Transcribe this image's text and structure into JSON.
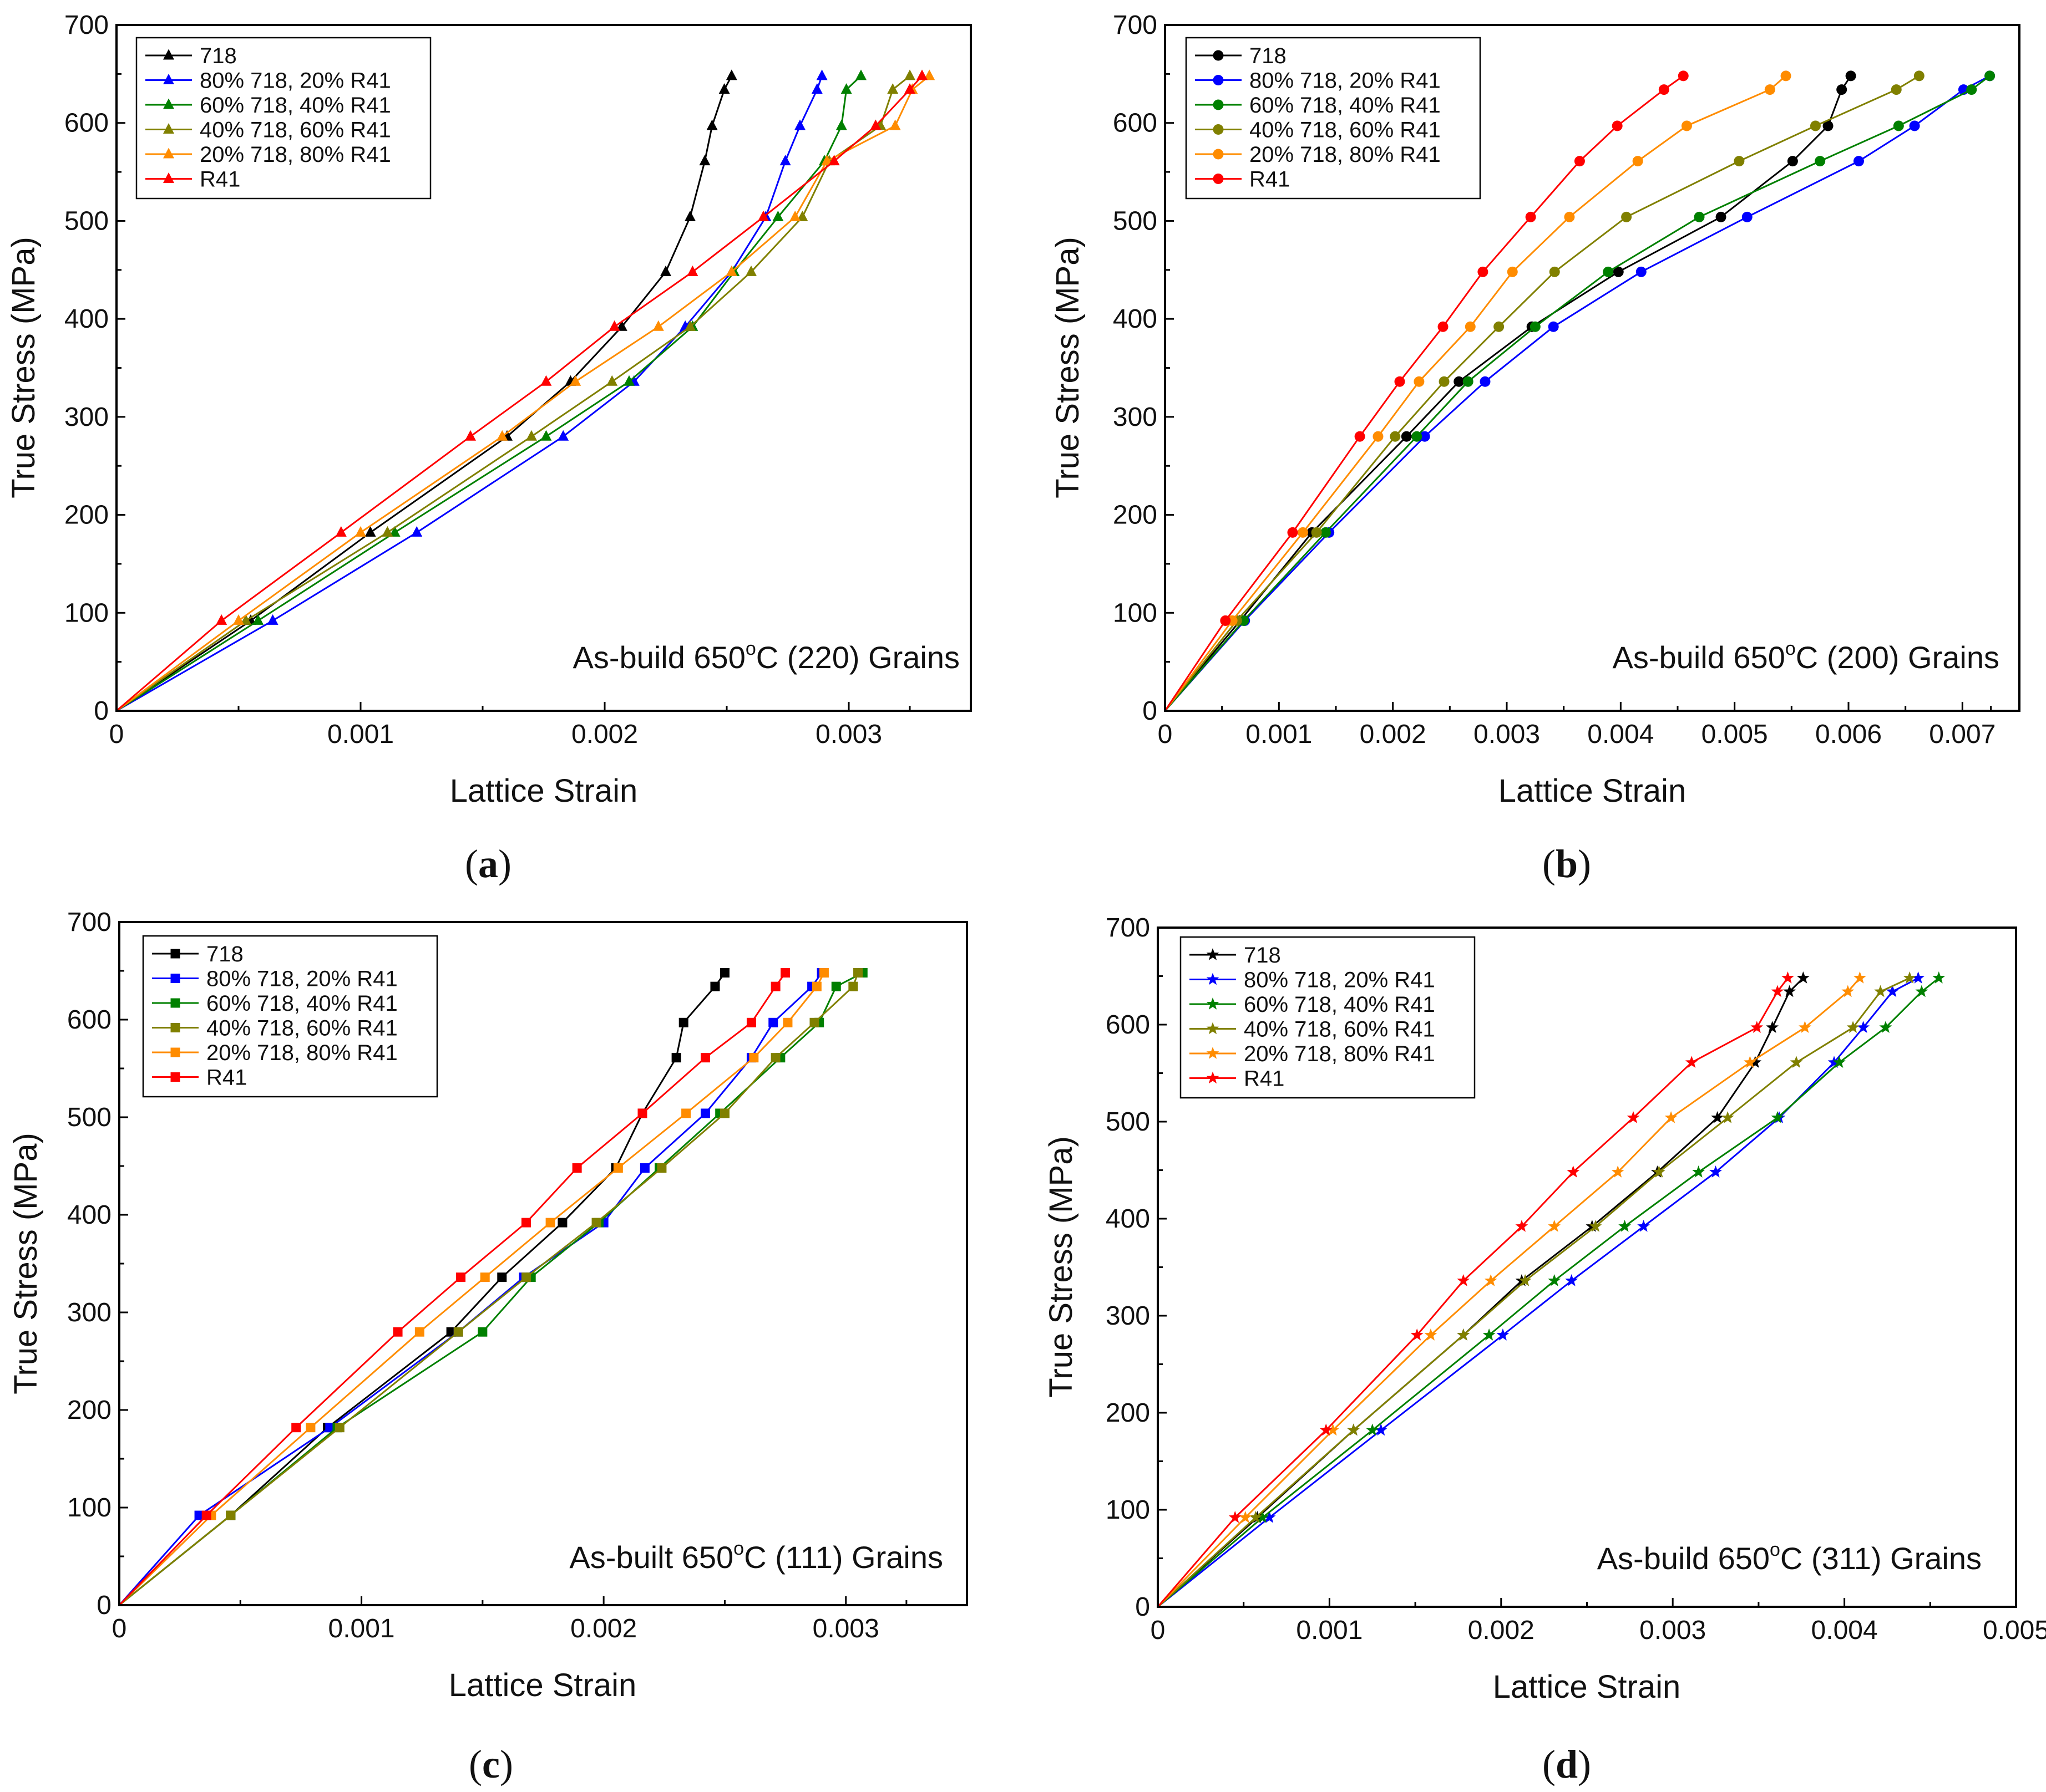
{
  "panels": [
    {
      "id": "a",
      "caption_open": "(",
      "caption_letter": "a",
      "caption_close": ")",
      "annotation_pre": "As-build 650",
      "annotation_sup": "o",
      "annotation_post": "C (220) Grains",
      "xlabel": "Lattice Strain",
      "ylabel": "True Stress (MPa)",
      "xlim": [
        0,
        0.0035
      ],
      "ylim": [
        0,
        700
      ],
      "xticks": [
        0,
        0.001,
        0.002,
        0.003
      ],
      "xtick_labels": [
        "0",
        "0.001",
        "0.002",
        "0.003"
      ],
      "yticks": [
        0,
        100,
        200,
        300,
        400,
        500,
        600,
        700
      ],
      "ytick_labels": [
        "0",
        "100",
        "200",
        "300",
        "400",
        "500",
        "600",
        "700"
      ],
      "marker": "triangle",
      "stresses": [
        0,
        92,
        182,
        280,
        336,
        392,
        448,
        504,
        561,
        597,
        634,
        648
      ],
      "series": [
        {
          "name": "718",
          "color": "#000000",
          "strains": [
            0,
            0.00055,
            0.00104,
            0.0016,
            0.00186,
            0.00207,
            0.00225,
            0.00235,
            0.00241,
            0.00244,
            0.00249,
            0.00252
          ]
        },
        {
          "name": "80% 718, 20% R41",
          "color": "#0000ff",
          "strains": [
            0,
            0.00064,
            0.00123,
            0.00183,
            0.00212,
            0.00233,
            0.00252,
            0.00266,
            0.00274,
            0.0028,
            0.00287,
            0.00289
          ]
        },
        {
          "name": "60% 718, 40% R41",
          "color": "#008000",
          "strains": [
            0,
            0.00058,
            0.00114,
            0.00176,
            0.0021,
            0.00236,
            0.00253,
            0.00271,
            0.0029,
            0.00297,
            0.00299,
            0.00305
          ]
        },
        {
          "name": "40% 718, 60% R41",
          "color": "#808000",
          "strains": [
            0,
            0.00053,
            0.00111,
            0.0017,
            0.00203,
            0.00235,
            0.0026,
            0.00281,
            0.00292,
            0.00313,
            0.00318,
            0.00325
          ]
        },
        {
          "name": "20% 718, 80% R41",
          "color": "#ff8c00",
          "strains": [
            0,
            0.0005,
            0.001,
            0.00158,
            0.00188,
            0.00222,
            0.00252,
            0.00278,
            0.00291,
            0.00319,
            0.00326,
            0.00333
          ]
        },
        {
          "name": "R41",
          "color": "#ff0000",
          "strains": [
            0,
            0.00043,
            0.00092,
            0.00145,
            0.00176,
            0.00204,
            0.00236,
            0.00265,
            0.00294,
            0.00311,
            0.00325,
            0.0033
          ]
        }
      ]
    },
    {
      "id": "b",
      "caption_open": "(",
      "caption_letter": "b",
      "caption_close": ")",
      "annotation_pre": "As-build 650",
      "annotation_sup": "o",
      "annotation_post": "C (200) Grains",
      "xlabel": "Lattice Strain",
      "ylabel": "True Stress (MPa)",
      "xlim": [
        0,
        0.0075
      ],
      "ylim": [
        0,
        700
      ],
      "xticks": [
        0,
        0.001,
        0.002,
        0.003,
        0.004,
        0.005,
        0.006,
        0.007
      ],
      "xtick_labels": [
        "0",
        "0.001",
        "0.002",
        "0.003",
        "0.004",
        "0.005",
        "0.006",
        "0.007"
      ],
      "yticks": [
        0,
        100,
        200,
        300,
        400,
        500,
        600,
        700
      ],
      "ytick_labels": [
        "0",
        "100",
        "200",
        "300",
        "400",
        "500",
        "600",
        "700"
      ],
      "marker": "circle",
      "stresses": [
        0,
        92,
        182,
        280,
        336,
        392,
        448,
        504,
        561,
        597,
        634,
        648
      ],
      "series": [
        {
          "name": "718",
          "color": "#000000",
          "strains": [
            0,
            0.00066,
            0.00129,
            0.00212,
            0.00258,
            0.00322,
            0.00398,
            0.00488,
            0.00551,
            0.00582,
            0.00594,
            0.00602
          ]
        },
        {
          "name": "80% 718, 20% R41",
          "color": "#0000ff",
          "strains": [
            0,
            0.0007,
            0.00144,
            0.00228,
            0.00281,
            0.00341,
            0.00418,
            0.00511,
            0.00609,
            0.00658,
            0.00701,
            0.00724
          ]
        },
        {
          "name": "60% 718, 40% R41",
          "color": "#008000",
          "strains": [
            0,
            0.00069,
            0.00141,
            0.00221,
            0.00266,
            0.00325,
            0.00389,
            0.00469,
            0.00575,
            0.00644,
            0.00708,
            0.00724
          ]
        },
        {
          "name": "40% 718, 60% R41",
          "color": "#808000",
          "strains": [
            0,
            0.00063,
            0.00133,
            0.00202,
            0.00245,
            0.00293,
            0.00342,
            0.00405,
            0.00504,
            0.00571,
            0.00642,
            0.00662
          ]
        },
        {
          "name": "20% 718, 80% R41",
          "color": "#ff8c00",
          "strains": [
            0,
            0.00059,
            0.00121,
            0.00187,
            0.00223,
            0.00268,
            0.00305,
            0.00355,
            0.00415,
            0.00458,
            0.00531,
            0.00545
          ]
        },
        {
          "name": "R41",
          "color": "#ff0000",
          "strains": [
            0,
            0.00053,
            0.00112,
            0.00171,
            0.00206,
            0.00244,
            0.00279,
            0.00321,
            0.00364,
            0.00397,
            0.00438,
            0.00455
          ]
        }
      ]
    },
    {
      "id": "c",
      "caption_open": "(",
      "caption_letter": "c",
      "caption_close": ")",
      "annotation_pre": "As-built 650",
      "annotation_sup": "o",
      "annotation_post": "C (111) Grains",
      "xlabel": "Lattice Strain",
      "ylabel": "True Stress (MPa)",
      "xlim": [
        0,
        0.0035
      ],
      "ylim": [
        0,
        700
      ],
      "xticks": [
        0,
        0.001,
        0.002,
        0.003
      ],
      "xtick_labels": [
        "0",
        "0.001",
        "0.002",
        "0.003"
      ],
      "yticks": [
        0,
        100,
        200,
        300,
        400,
        500,
        600,
        700
      ],
      "ytick_labels": [
        "0",
        "100",
        "200",
        "300",
        "400",
        "500",
        "600",
        "700"
      ],
      "marker": "square",
      "stresses": [
        0,
        92,
        182,
        280,
        336,
        392,
        448,
        504,
        561,
        597,
        634,
        648
      ],
      "series": [
        {
          "name": "718",
          "color": "#000000",
          "strains": [
            0,
            0.00046,
            0.00086,
            0.00137,
            0.00158,
            0.00183,
            0.00205,
            0.00216,
            0.0023,
            0.00233,
            0.00246,
            0.0025
          ]
        },
        {
          "name": "80% 718, 20% R41",
          "color": "#0000ff",
          "strains": [
            0,
            0.00033,
            0.00087,
            0.0014,
            0.00167,
            0.002,
            0.00217,
            0.00242,
            0.00261,
            0.0027,
            0.00286,
            0.0029
          ]
        },
        {
          "name": "60% 718, 40% R41",
          "color": "#008000",
          "strains": [
            0,
            0.00046,
            0.0009,
            0.0015,
            0.0017,
            0.00198,
            0.00223,
            0.00248,
            0.00273,
            0.00289,
            0.00296,
            0.00307
          ]
        },
        {
          "name": "40% 718, 60% R41",
          "color": "#808000",
          "strains": [
            0,
            0.00046,
            0.00091,
            0.0014,
            0.00168,
            0.00197,
            0.00224,
            0.0025,
            0.00271,
            0.00287,
            0.00303,
            0.00305
          ]
        },
        {
          "name": "20% 718, 80% R41",
          "color": "#ff8c00",
          "strains": [
            0,
            0.00038,
            0.00079,
            0.00124,
            0.00151,
            0.00178,
            0.00206,
            0.00234,
            0.00262,
            0.00276,
            0.00288,
            0.00291
          ]
        },
        {
          "name": "R41",
          "color": "#ff0000",
          "strains": [
            0,
            0.00036,
            0.00073,
            0.00115,
            0.00141,
            0.00168,
            0.00189,
            0.00216,
            0.00242,
            0.00261,
            0.00271,
            0.00275
          ]
        }
      ]
    },
    {
      "id": "d",
      "caption_open": "(",
      "caption_letter": "d",
      "caption_close": ")",
      "annotation_pre": "As-build 650",
      "annotation_sup": "o",
      "annotation_post": "C (311) Grains",
      "xlabel": "Lattice Strain",
      "ylabel": "True Stress (MPa)",
      "xlim": [
        0,
        0.005
      ],
      "ylim": [
        0,
        700
      ],
      "xticks": [
        0,
        0.001,
        0.002,
        0.003,
        0.004,
        0.005
      ],
      "xtick_labels": [
        "0",
        "0.001",
        "0.002",
        "0.003",
        "0.004",
        "0.005"
      ],
      "yticks": [
        0,
        100,
        200,
        300,
        400,
        500,
        600,
        700
      ],
      "ytick_labels": [
        "0",
        "100",
        "200",
        "300",
        "400",
        "500",
        "600",
        "700"
      ],
      "marker": "star",
      "stresses": [
        0,
        92,
        182,
        280,
        336,
        392,
        448,
        504,
        561,
        597,
        634,
        648
      ],
      "series": [
        {
          "name": "718",
          "color": "#000000",
          "strains": [
            0,
            0.00058,
            0.00114,
            0.00178,
            0.00212,
            0.00253,
            0.00291,
            0.00326,
            0.00348,
            0.00358,
            0.00368,
            0.00376
          ]
        },
        {
          "name": "80% 718, 20% R41",
          "color": "#0000ff",
          "strains": [
            0,
            0.00065,
            0.0013,
            0.00201,
            0.00241,
            0.00283,
            0.00325,
            0.00362,
            0.00394,
            0.00411,
            0.00428,
            0.00443
          ]
        },
        {
          "name": "60% 718, 40% R41",
          "color": "#008000",
          "strains": [
            0,
            0.00061,
            0.00125,
            0.00193,
            0.00231,
            0.00272,
            0.00315,
            0.00361,
            0.00397,
            0.00424,
            0.00445,
            0.00455
          ]
        },
        {
          "name": "40% 718, 60% R41",
          "color": "#808000",
          "strains": [
            0,
            0.00057,
            0.00114,
            0.00178,
            0.00214,
            0.00255,
            0.00292,
            0.00332,
            0.00372,
            0.00405,
            0.00421,
            0.00438
          ]
        },
        {
          "name": "20% 718, 80% R41",
          "color": "#ff8c00",
          "strains": [
            0,
            0.00051,
            0.00102,
            0.00159,
            0.00194,
            0.00231,
            0.00268,
            0.00299,
            0.00345,
            0.00377,
            0.00402,
            0.00409
          ]
        },
        {
          "name": "R41",
          "color": "#ff0000",
          "strains": [
            0,
            0.00045,
            0.00098,
            0.00151,
            0.00178,
            0.00212,
            0.00242,
            0.00277,
            0.00311,
            0.00349,
            0.00361,
            0.00367
          ]
        }
      ]
    }
  ]
}
